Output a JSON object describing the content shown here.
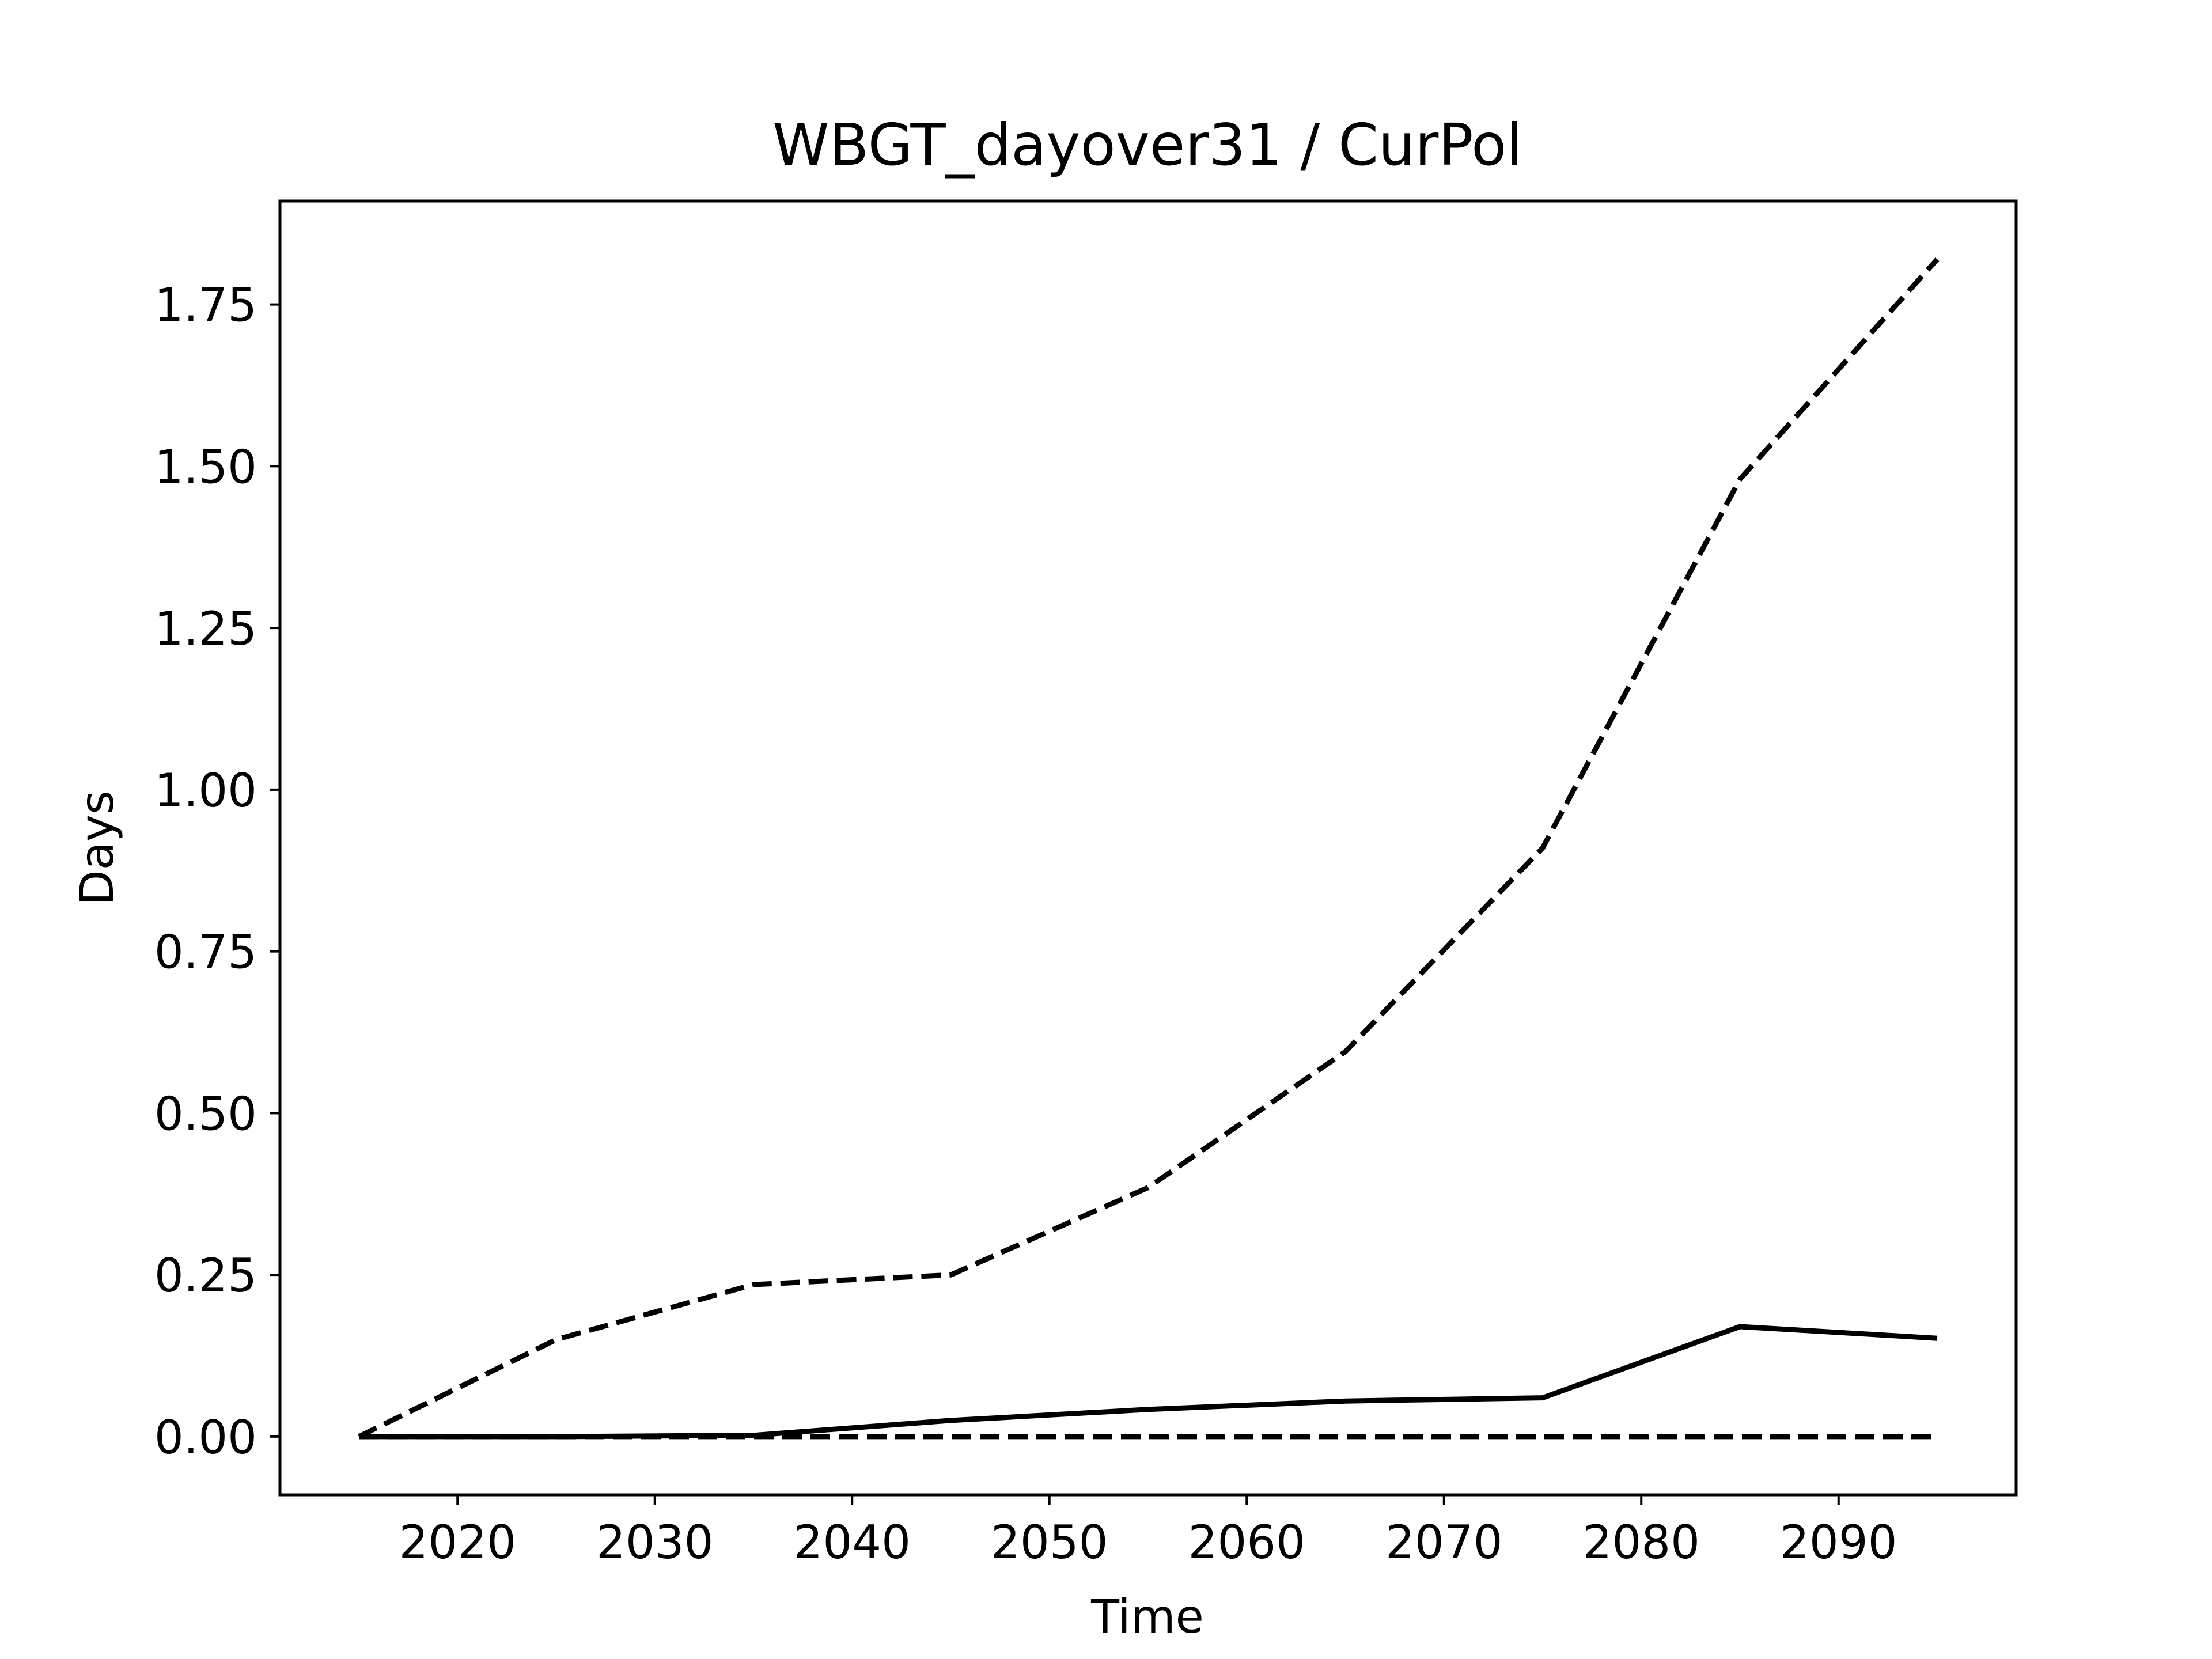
{
  "chart_data": {
    "type": "line",
    "title": "WBGT_dayover31 / CurPol",
    "xlabel": "Time",
    "ylabel": "Days",
    "xlim": [
      2011,
      2099
    ],
    "ylim": [
      -0.09,
      1.91
    ],
    "xticks": [
      2020,
      2030,
      2040,
      2050,
      2060,
      2070,
      2080,
      2090
    ],
    "yticks": [
      0.0,
      0.25,
      0.5,
      0.75,
      1.0,
      1.25,
      1.5,
      1.75
    ],
    "ytick_labels": [
      "0.00",
      "0.25",
      "0.50",
      "0.75",
      "1.00",
      "1.25",
      "1.50",
      "1.75"
    ],
    "grid": false,
    "legend": "none",
    "x": [
      2015,
      2025,
      2035,
      2045,
      2055,
      2065,
      2075,
      2085,
      2095
    ],
    "series": [
      {
        "style": "dashed",
        "color": "#000000",
        "values": [
          0.0,
          0.15,
          0.235,
          0.25,
          0.385,
          0.595,
          0.91,
          1.48,
          1.82
        ]
      },
      {
        "style": "solid",
        "color": "#000000",
        "values": [
          0.0,
          0.0,
          0.002,
          0.025,
          0.042,
          0.055,
          0.06,
          0.17,
          0.152
        ]
      },
      {
        "style": "dashed",
        "color": "#000000",
        "values": [
          0.0,
          0.0,
          0.0,
          0.0,
          0.0,
          0.0,
          0.0,
          0.0,
          0.0
        ]
      }
    ]
  }
}
